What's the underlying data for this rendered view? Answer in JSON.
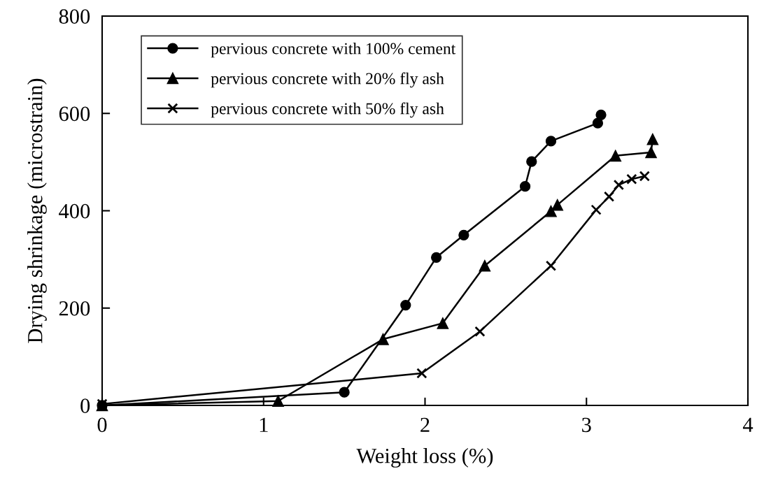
{
  "chart_data": {
    "type": "line",
    "xlabel": "Weight loss (%)",
    "ylabel": "Drying shrinkage (microstrain)",
    "xlim": [
      0,
      4
    ],
    "xticks": [
      0,
      1,
      2,
      3,
      4
    ],
    "ylim": [
      0,
      800
    ],
    "yticks": [
      0,
      200,
      400,
      600,
      800
    ],
    "grid": false,
    "legend": "top left",
    "line_style": "solid",
    "series": [
      {
        "name": "pervious concrete with 100% cement",
        "color": "#000000",
        "marker": "circle",
        "x": [
          0,
          1.5,
          1.88,
          2.07,
          2.24,
          2.62,
          2.66,
          2.78,
          3.07,
          3.09
        ],
        "values": [
          0,
          27,
          206,
          304,
          350,
          450,
          501,
          543,
          580,
          597
        ]
      },
      {
        "name": "pervious concrete with 20% fly ash",
        "color": "#000000",
        "marker": "triangle",
        "x": [
          0,
          1.09,
          1.74,
          2.11,
          2.37,
          2.78,
          2.82,
          3.18,
          3.4,
          3.41
        ],
        "values": [
          0,
          9,
          136,
          169,
          287,
          399,
          412,
          513,
          520,
          547
        ]
      },
      {
        "name": "pervious concrete with 50% fly ash",
        "color": "#000000",
        "marker": "cross",
        "x": [
          0,
          1.98,
          2.34,
          2.78,
          3.06,
          3.14,
          3.2,
          3.28,
          3.36
        ],
        "values": [
          3,
          66,
          152,
          287,
          402,
          429,
          453,
          465,
          471
        ]
      }
    ]
  }
}
